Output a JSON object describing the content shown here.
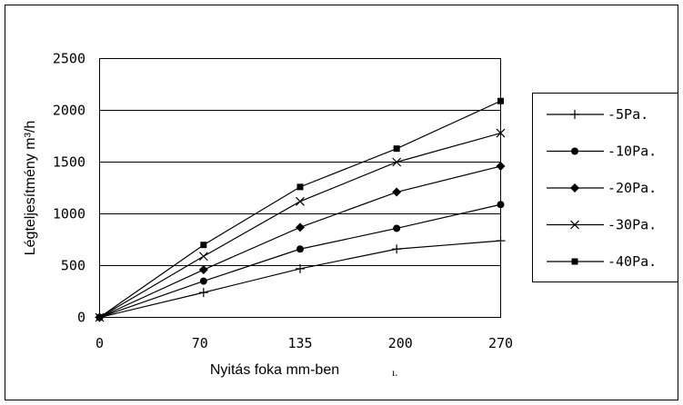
{
  "chart_data": {
    "type": "line",
    "title": "",
    "xlabel": "Nyitás foka mm-ben",
    "ylabel": "Légteljesítmény m³/h",
    "x": [
      0,
      70,
      135,
      200,
      270
    ],
    "x_ticks": [
      "0",
      "70",
      "135",
      "200",
      "270"
    ],
    "y_ticks": [
      "0",
      "500",
      "1000",
      "1500",
      "2000",
      "2500"
    ],
    "ylim": [
      0,
      2500
    ],
    "grid": "horizontal",
    "legend_position": "right",
    "series": [
      {
        "name": "-5Pa.",
        "marker": "plus",
        "values": [
          0,
          240,
          470,
          660,
          740
        ]
      },
      {
        "name": "-10Pa.",
        "marker": "circle",
        "values": [
          0,
          350,
          660,
          860,
          1090
        ]
      },
      {
        "name": "-20Pa.",
        "marker": "diamond",
        "values": [
          0,
          460,
          870,
          1210,
          1460
        ]
      },
      {
        "name": "-30Pa.",
        "marker": "cross",
        "values": [
          0,
          590,
          1120,
          1500,
          1780
        ]
      },
      {
        "name": "-40Pa.",
        "marker": "square",
        "values": [
          0,
          700,
          1260,
          1630,
          2090
        ]
      }
    ]
  },
  "stray_text": "ı."
}
